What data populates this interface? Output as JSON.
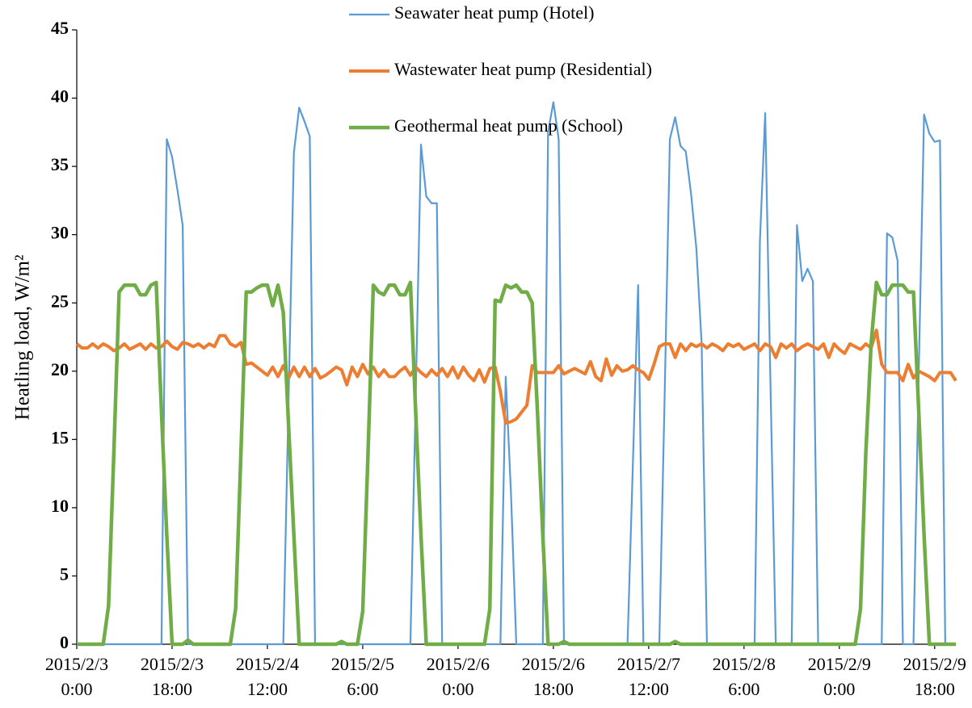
{
  "chart_data": {
    "type": "line",
    "ylabel": "Heatling load, W/m²",
    "x": [
      0,
      1,
      2,
      3,
      4,
      5,
      6,
      7,
      8,
      9,
      10,
      11,
      12,
      13,
      14,
      15,
      16,
      17,
      18,
      19,
      20,
      21,
      22,
      23,
      24,
      25,
      26,
      27,
      28,
      29,
      30,
      31,
      32,
      33,
      34,
      35,
      36,
      37,
      38,
      39,
      40,
      41,
      42,
      43,
      44,
      45,
      46,
      47,
      48,
      49,
      50,
      51,
      52,
      53,
      54,
      55,
      56,
      57,
      58,
      59,
      60,
      61,
      62,
      63,
      64,
      65,
      66,
      67,
      68,
      69,
      70,
      71,
      72,
      73,
      74,
      75,
      76,
      77,
      78,
      79,
      80,
      81,
      82,
      83,
      84,
      85,
      86,
      87,
      88,
      89,
      90,
      91,
      92,
      93,
      94,
      95,
      96,
      97,
      98,
      99,
      100,
      101,
      102,
      103,
      104,
      105,
      106,
      107,
      108,
      109,
      110,
      111,
      112,
      113,
      114,
      115,
      116,
      117,
      118,
      119,
      120,
      121,
      122,
      123,
      124,
      125,
      126,
      127,
      128,
      129,
      130,
      131,
      132,
      133,
      134,
      135,
      136,
      137,
      138,
      139,
      140,
      141,
      142,
      143,
      144,
      145,
      146,
      147,
      148,
      149,
      150,
      151,
      152,
      153,
      154,
      155,
      156,
      157,
      158,
      159,
      160,
      161,
      162,
      163,
      164,
      165,
      166
    ],
    "xlim": [
      0,
      166
    ],
    "xticks": [
      {
        "value": 0,
        "label": "2015/2/3 0:00"
      },
      {
        "value": 18,
        "label": "2015/2/3 18:00"
      },
      {
        "value": 36,
        "label": "2015/2/4 12:00"
      },
      {
        "value": 54,
        "label": "2015/2/5 6:00"
      },
      {
        "value": 72,
        "label": "2015/2/6 0:00"
      },
      {
        "value": 90,
        "label": "2015/2/6 18:00"
      },
      {
        "value": 108,
        "label": "2015/2/7 12:00"
      },
      {
        "value": 126,
        "label": "2015/2/8 6:00"
      },
      {
        "value": 144,
        "label": "2015/2/9 0:00"
      },
      {
        "value": 162,
        "label": "2015/2/9 18:00"
      }
    ],
    "ylim": [
      0,
      45
    ],
    "yticks": [
      0,
      5,
      10,
      15,
      20,
      25,
      30,
      35,
      40,
      45
    ],
    "series": [
      {
        "name": "Seawater heat pump (Hotel)",
        "color": "#5b9bd5",
        "width": 2.2,
        "values": [
          0,
          0,
          0,
          0,
          0,
          0,
          0,
          0,
          0,
          0,
          0,
          0,
          0,
          0,
          0,
          0,
          0,
          37,
          35.7,
          33.3,
          30.7,
          0,
          0,
          0,
          0,
          0,
          0,
          0,
          0,
          0,
          0,
          0,
          0,
          0,
          0,
          0,
          0,
          0,
          0,
          0,
          18,
          36,
          39.3,
          38.3,
          37.2,
          0,
          0,
          0,
          0,
          0,
          0,
          0,
          0,
          0,
          0,
          0,
          0,
          0,
          0,
          0,
          0,
          0,
          0,
          0,
          18,
          36.6,
          32.8,
          32.3,
          32.3,
          0,
          0,
          0,
          0,
          0,
          0,
          0,
          0,
          0,
          0,
          0,
          0,
          19.6,
          11,
          0,
          0,
          0,
          0,
          0,
          0,
          37.5,
          39.7,
          37,
          0,
          0,
          0,
          0,
          0,
          0,
          0,
          0,
          0,
          0,
          0,
          0,
          0,
          13,
          26.3,
          0,
          0,
          0,
          0,
          18,
          37,
          38.6,
          36.5,
          36.1,
          33,
          29,
          22,
          0,
          0,
          0,
          0,
          0,
          0,
          0,
          0,
          0,
          0,
          29.5,
          38.9,
          19,
          0,
          0,
          0,
          0,
          30.7,
          26.6,
          27.5,
          26.6,
          0,
          0,
          0,
          0,
          0,
          0,
          0,
          0,
          0,
          0,
          0,
          0,
          0,
          30.1,
          29.8,
          28.1,
          0,
          0,
          0,
          20,
          38.8,
          37.4,
          36.8,
          36.9,
          0,
          0,
          0
        ]
      },
      {
        "name": "Wastewater heat pump (Residential)",
        "color": "#ed7d31",
        "width": 4,
        "values": [
          22,
          21.7,
          21.7,
          22,
          21.7,
          22,
          21.8,
          21.5,
          21.7,
          22,
          21.6,
          21.8,
          22,
          21.6,
          22,
          21.7,
          21.8,
          22.2,
          21.8,
          21.6,
          22.1,
          22,
          21.8,
          22,
          21.7,
          22,
          21.8,
          22.6,
          22.6,
          22,
          21.8,
          22.1,
          20.5,
          20.6,
          20.3,
          20,
          19.7,
          20.3,
          19.6,
          20.4,
          19.5,
          20.3,
          19.6,
          20.3,
          19.6,
          20.2,
          19.5,
          19.7,
          20,
          20.3,
          20.1,
          19,
          20.3,
          19.6,
          20.5,
          19.8,
          20.3,
          19.6,
          20.1,
          19.6,
          19.6,
          20,
          20.3,
          19.7,
          20.3,
          19.9,
          19.6,
          20.1,
          19.7,
          20.2,
          19.6,
          20.3,
          19.5,
          20.3,
          19.7,
          19.3,
          20.1,
          19.2,
          20.2,
          20.3,
          18.5,
          16.2,
          16.3,
          16.5,
          17,
          17.5,
          20.4,
          19.9,
          19.9,
          19.9,
          19.9,
          20.4,
          19.8,
          20,
          20.2,
          20,
          19.8,
          20.7,
          19.6,
          19.3,
          20.9,
          19.7,
          20.4,
          20,
          20.1,
          20.4,
          20.1,
          19.9,
          19.4,
          20.5,
          21.8,
          22,
          22,
          21,
          22,
          21.5,
          22,
          21.8,
          22,
          21.7,
          22,
          21.8,
          21.5,
          22,
          21.8,
          22,
          21.6,
          21.8,
          22,
          21.5,
          22,
          21.8,
          21,
          22,
          21.7,
          22,
          21.5,
          21.8,
          22,
          21.8,
          21.6,
          22,
          21,
          22,
          21.6,
          21.3,
          22,
          21.8,
          21.6,
          22,
          21.7,
          23,
          20.5,
          19.9,
          19.9,
          19.9,
          19.3,
          20.5,
          19.5,
          20,
          19.8,
          19.6,
          19.3,
          19.9,
          19.9,
          19.9,
          19.3
        ]
      },
      {
        "name": "Geothermal heat pump (School)",
        "color": "#70ad47",
        "width": 4.5,
        "values": [
          0,
          0,
          0,
          0,
          0,
          0,
          2.8,
          14,
          25.8,
          26.3,
          26.3,
          26.3,
          25.6,
          25.6,
          26.3,
          26.5,
          17,
          8,
          0,
          0,
          0,
          0.3,
          0,
          0,
          0,
          0,
          0,
          0,
          0,
          0,
          2.6,
          14,
          25.8,
          25.8,
          26.1,
          26.3,
          26.3,
          24.8,
          26.3,
          24.3,
          16,
          8,
          0,
          0,
          0,
          0,
          0,
          0,
          0,
          0,
          0.2,
          0,
          0,
          0,
          2.4,
          14,
          26.3,
          25.8,
          25.6,
          26.3,
          26.3,
          25.6,
          25.6,
          26.5,
          17,
          8,
          0,
          0,
          0,
          0,
          0,
          0,
          0,
          0,
          0,
          0,
          0,
          0,
          2.6,
          25.2,
          25.1,
          26.3,
          26.1,
          26.3,
          25.8,
          25.8,
          25,
          17,
          8,
          0,
          0,
          0,
          0.2,
          0,
          0,
          0,
          0,
          0,
          0,
          0,
          0,
          0,
          0,
          0,
          0,
          0,
          0,
          0,
          0,
          0,
          0,
          0,
          0,
          0.2,
          0,
          0,
          0,
          0,
          0,
          0,
          0,
          0,
          0,
          0,
          0,
          0,
          0,
          0,
          0,
          0,
          0,
          0,
          0,
          0,
          0,
          0,
          0,
          0,
          0,
          0,
          0,
          0,
          0,
          0,
          0,
          0,
          0,
          0,
          2.6,
          14,
          22,
          26.5,
          25.6,
          25.6,
          26.3,
          26.3,
          26.3,
          25.8,
          25.8,
          17,
          8,
          0,
          0,
          0,
          0,
          0,
          0
        ]
      }
    ]
  }
}
